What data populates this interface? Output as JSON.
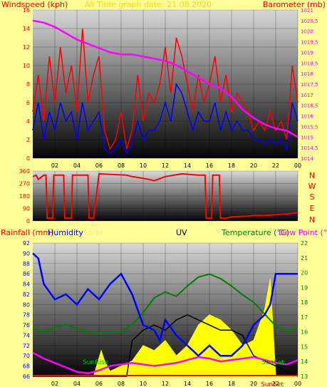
{
  "colors": {
    "background": "#ffff99",
    "wind": "#ff0000",
    "gust": "#0000ff",
    "barometer": "#ff00ff",
    "direction": "#ff0000",
    "humidity": "#0000ff",
    "solar": "#ffff00",
    "uv": "#000000",
    "temperature": "#008000",
    "dewpoint": "#ff00ff",
    "header_gold": "#ffd700",
    "label_red": "#ff0000"
  },
  "header": {
    "wind_title": "Windspeed (kph)",
    "date_title": "All Time graph date: 21.08.2020",
    "baro_title": "Barometer (mb)"
  },
  "compass": [
    "N",
    "W",
    "S",
    "E",
    "N"
  ],
  "legend": {
    "rainfall": "Rainfall (mm)",
    "humidity": "Humidity",
    "solar": "Solar",
    "uv": "UV",
    "temperature": "Temperature (°C)",
    "dewpoint": "Dew Point (°C"
  },
  "annotations": {
    "sunrise": "SunRise",
    "sunset": "SunSet",
    "sunset_axis": "SunSet"
  },
  "chart_data": [
    {
      "id": "wind_baro",
      "type": "line",
      "x_ticks": [
        "02",
        "04",
        "06",
        "08",
        "10",
        "12",
        "14",
        "16",
        "18",
        "20",
        "22",
        "00"
      ],
      "ylim_left": [
        0,
        16
      ],
      "y_ticks_left": [
        "0",
        "2",
        "4",
        "6",
        "8",
        "10",
        "12",
        "14",
        "16"
      ],
      "ylim_right": [
        1014,
        1021
      ],
      "y_ticks_right": [
        "1014",
        "1014,5",
        "1015",
        "1015,5",
        "1016",
        "1016,5",
        "1017",
        "1017,5",
        "1018",
        "1018,5",
        "1019",
        "1019,5",
        "1020",
        "1020,5",
        "1021"
      ],
      "series": [
        {
          "name": "Windspeed",
          "axis": "left",
          "x": [
            0,
            0.5,
            1,
            1.5,
            2,
            2.5,
            3,
            3.5,
            4,
            4.5,
            5,
            5.5,
            6,
            6.5,
            7,
            7.5,
            8,
            8.5,
            9,
            9.5,
            10,
            10.5,
            11,
            11.5,
            12,
            12.5,
            13,
            13.5,
            14,
            14.5,
            15,
            15.5,
            16,
            16.5,
            17,
            17.5,
            18,
            18.5,
            19,
            19.5,
            20,
            20.5,
            21,
            21.5,
            22,
            22.5,
            23,
            23.5,
            24
          ],
          "values": [
            5,
            9,
            4,
            11,
            6,
            12,
            7,
            10,
            5,
            14,
            6,
            9,
            11,
            3,
            1,
            2,
            5,
            1,
            3,
            9,
            4,
            7,
            6,
            8,
            12,
            7,
            13,
            11,
            8,
            5,
            9,
            6,
            8,
            11,
            6,
            9,
            5,
            7,
            6,
            5,
            3,
            4,
            3,
            5,
            3,
            4,
            2,
            10,
            6
          ]
        },
        {
          "name": "Gust",
          "axis": "left",
          "x": [
            0,
            0.5,
            1,
            1.5,
            2,
            2.5,
            3,
            3.5,
            4,
            4.5,
            5,
            5.5,
            6,
            6.5,
            7,
            7.5,
            8,
            8.5,
            9,
            9.5,
            10,
            10.5,
            11,
            11.5,
            12,
            12.5,
            13,
            13.5,
            14,
            14.5,
            15,
            15.5,
            16,
            16.5,
            17,
            17.5,
            18,
            18.5,
            19,
            19.5,
            20,
            20.5,
            21,
            21.5,
            22,
            22.5,
            23,
            23.5,
            24
          ],
          "values": [
            3,
            6,
            2,
            5,
            3,
            6,
            4,
            5,
            2,
            6,
            3,
            4,
            5,
            1,
            0.5,
            1,
            2,
            0.5,
            1.5,
            4,
            2,
            3,
            3,
            4,
            6,
            4,
            8,
            7,
            5,
            3,
            5,
            4,
            4,
            6,
            3,
            5,
            3,
            4,
            3,
            3,
            2,
            2,
            1.5,
            2,
            1.5,
            2,
            1,
            6,
            4
          ]
        },
        {
          "name": "Barometer",
          "axis": "right",
          "x": [
            0,
            1,
            2,
            3,
            4,
            5,
            6,
            7,
            8,
            9,
            10,
            11,
            12,
            13,
            14,
            15,
            16,
            17,
            18,
            19,
            20,
            21,
            22,
            23,
            24
          ],
          "values": [
            1020.5,
            1020.4,
            1020.2,
            1019.9,
            1019.6,
            1019.4,
            1019.2,
            1019.0,
            1018.9,
            1018.9,
            1018.8,
            1018.7,
            1018.6,
            1018.4,
            1018.1,
            1017.8,
            1017.5,
            1017.3,
            1016.9,
            1016.3,
            1015.9,
            1015.6,
            1015.4,
            1015.3,
            1015.0
          ]
        }
      ]
    },
    {
      "id": "wind_direction",
      "type": "line",
      "ylim": [
        0,
        360
      ],
      "y_ticks": [
        "0",
        "90",
        "180",
        "270",
        "360"
      ],
      "series": [
        {
          "name": "Direction",
          "x": [
            0,
            0.3,
            0.5,
            1.0,
            1.2,
            1.3,
            1.8,
            1.9,
            2.0,
            2.8,
            2.9,
            3.5,
            3.6,
            5.0,
            5.1,
            5.5,
            6.0,
            8.5,
            9.0,
            9.8,
            10.5,
            11.0,
            12.0,
            13.5,
            15.0,
            15.6,
            15.7,
            16.2,
            16.3,
            16.9,
            17.0,
            17.5,
            18.0,
            19.5,
            20.0,
            21.0,
            22.0,
            23.0,
            24.0
          ],
          "values": [
            320,
            330,
            300,
            330,
            330,
            20,
            20,
            330,
            330,
            330,
            20,
            20,
            330,
            330,
            20,
            20,
            340,
            330,
            320,
            310,
            300,
            290,
            320,
            340,
            330,
            330,
            20,
            20,
            330,
            330,
            20,
            20,
            30,
            35,
            40,
            40,
            45,
            50,
            60
          ]
        }
      ]
    },
    {
      "id": "temp_hum",
      "type": "line",
      "x_ticks": [
        "02",
        "04",
        "06",
        "08",
        "10",
        "12",
        "14",
        "16",
        "18",
        "20",
        "22",
        "00"
      ],
      "ylim_left": [
        66,
        92
      ],
      "y_ticks_left": [
        "66",
        "68",
        "70",
        "72",
        "74",
        "76",
        "78",
        "80",
        "82",
        "84",
        "86",
        "88",
        "90",
        "92"
      ],
      "ylim_right": [
        13,
        22
      ],
      "y_ticks_right": [
        "13",
        "14",
        "15",
        "16",
        "17",
        "18",
        "19",
        "20",
        "21",
        "22"
      ],
      "series": [
        {
          "name": "Humidity",
          "axis": "left",
          "x": [
            0,
            0.5,
            1,
            2,
            3,
            4,
            5,
            6,
            7,
            8,
            8.5,
            9,
            10,
            11,
            11.5,
            12,
            13,
            14,
            15,
            16,
            17,
            18,
            19,
            20,
            21,
            21.5,
            22,
            23,
            24
          ],
          "values": [
            90,
            89,
            84,
            81,
            82,
            80,
            83,
            81,
            84,
            86,
            84,
            82,
            76,
            75,
            73,
            77,
            74,
            72,
            70,
            72,
            70,
            70,
            72,
            76,
            78,
            80,
            86,
            86,
            86
          ]
        },
        {
          "name": "Solar",
          "axis": "left",
          "x": [
            0,
            5.0,
            5.5,
            6.2,
            6.5,
            7.0,
            8.0,
            9.0,
            10.0,
            11.0,
            12.0,
            13.0,
            14.0,
            15.0,
            16.0,
            17.0,
            18.0,
            19.0,
            20.0,
            20.5,
            21.0,
            21.5,
            22.0,
            24
          ],
          "values": [
            66,
            66,
            66,
            71,
            69,
            67,
            68,
            69,
            72,
            71,
            73,
            70,
            72,
            76,
            78,
            77,
            75,
            72,
            73,
            76,
            79,
            85,
            66,
            66
          ]
        },
        {
          "name": "UV",
          "axis": "left",
          "x": [
            0,
            8.5,
            9.0,
            10.0,
            11.0,
            12.0,
            13.0,
            14.0,
            15.0,
            16.0,
            17.0,
            18.0,
            19.0,
            20.0,
            24
          ],
          "values": [
            66,
            66,
            73,
            75,
            76,
            75,
            77,
            78,
            77,
            76,
            75,
            75,
            74,
            70,
            66
          ]
        },
        {
          "name": "Temperature",
          "axis": "right",
          "x": [
            0,
            1,
            2,
            3,
            4,
            5,
            6,
            7,
            8,
            9,
            10,
            11,
            12,
            13,
            14,
            15,
            16,
            17,
            18,
            19,
            20,
            21,
            22,
            23,
            24
          ],
          "values": [
            16.2,
            16.0,
            16.3,
            16.5,
            16.2,
            16.0,
            15.9,
            16.0,
            16.0,
            16.5,
            17.3,
            18.3,
            18.7,
            18.4,
            19.1,
            19.7,
            19.9,
            19.6,
            19.1,
            18.5,
            18.0,
            17.2,
            16.4,
            16.0,
            16.2
          ]
        },
        {
          "name": "Dew Point",
          "axis": "right",
          "x": [
            0,
            1,
            2,
            3,
            4,
            5,
            6,
            7,
            8,
            9,
            10,
            11,
            12,
            13,
            14,
            15,
            16,
            17,
            18,
            19,
            20,
            21,
            22,
            23,
            24
          ],
          "values": [
            14.6,
            14.2,
            13.9,
            13.6,
            13.3,
            13.2,
            13.4,
            13.7,
            13.8,
            13.9,
            13.8,
            13.7,
            13.8,
            13.9,
            14.1,
            14.3,
            14.2,
            14.0,
            14.1,
            14.2,
            14.3,
            14.1,
            13.9,
            13.8,
            14.1
          ]
        }
      ]
    }
  ]
}
